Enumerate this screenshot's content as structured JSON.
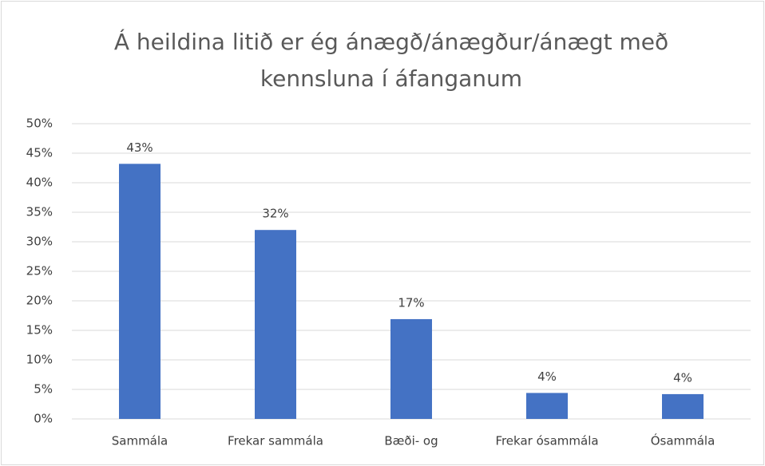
{
  "chart_data": {
    "type": "bar",
    "title": "Á heildina litið er ég ánægð/ánægður/ánægt með kennsluna í áfanganum",
    "categories": [
      "Sammála",
      "Frekar sammála",
      "Bæði- og",
      "Frekar ósammála",
      "Ósammála"
    ],
    "values": [
      43.2,
      32,
      16.9,
      4.4,
      4.2
    ],
    "value_labels": [
      "43%",
      "32%",
      "17%",
      "4%",
      "4%"
    ],
    "color": "#4472c4",
    "ylim": [
      0,
      50
    ],
    "yticks": [
      {
        "value": 0,
        "label": "0%"
      },
      {
        "value": 5,
        "label": "5%"
      },
      {
        "value": 10,
        "label": "10%"
      },
      {
        "value": 15,
        "label": "15%"
      },
      {
        "value": 20,
        "label": "20%"
      },
      {
        "value": 25,
        "label": "25%"
      },
      {
        "value": 30,
        "label": "30%"
      },
      {
        "value": 35,
        "label": "35%"
      },
      {
        "value": 40,
        "label": "40%"
      },
      {
        "value": 45,
        "label": "45%"
      },
      {
        "value": 50,
        "label": "50%"
      }
    ],
    "grid": true
  }
}
